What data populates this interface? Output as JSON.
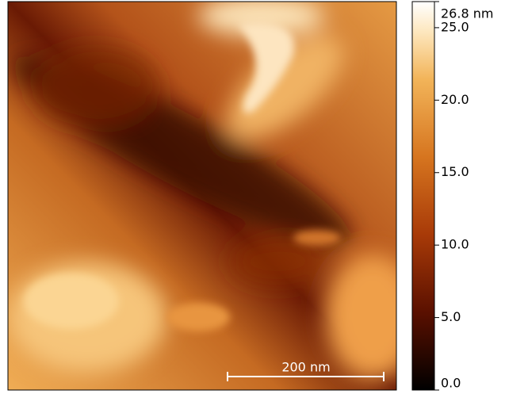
{
  "scale_bar": {
    "label": "200 nm"
  },
  "colorbar": {
    "max": {
      "value": 26.8,
      "label": "26.8 nm"
    },
    "ticks": [
      {
        "value": 0,
        "label": "0.0"
      },
      {
        "value": 5,
        "label": "5.0"
      },
      {
        "value": 10,
        "label": "10.0"
      },
      {
        "value": 15,
        "label": "15.0"
      },
      {
        "value": 20,
        "label": "20.0"
      },
      {
        "value": 25,
        "label": "25.0"
      }
    ]
  }
}
